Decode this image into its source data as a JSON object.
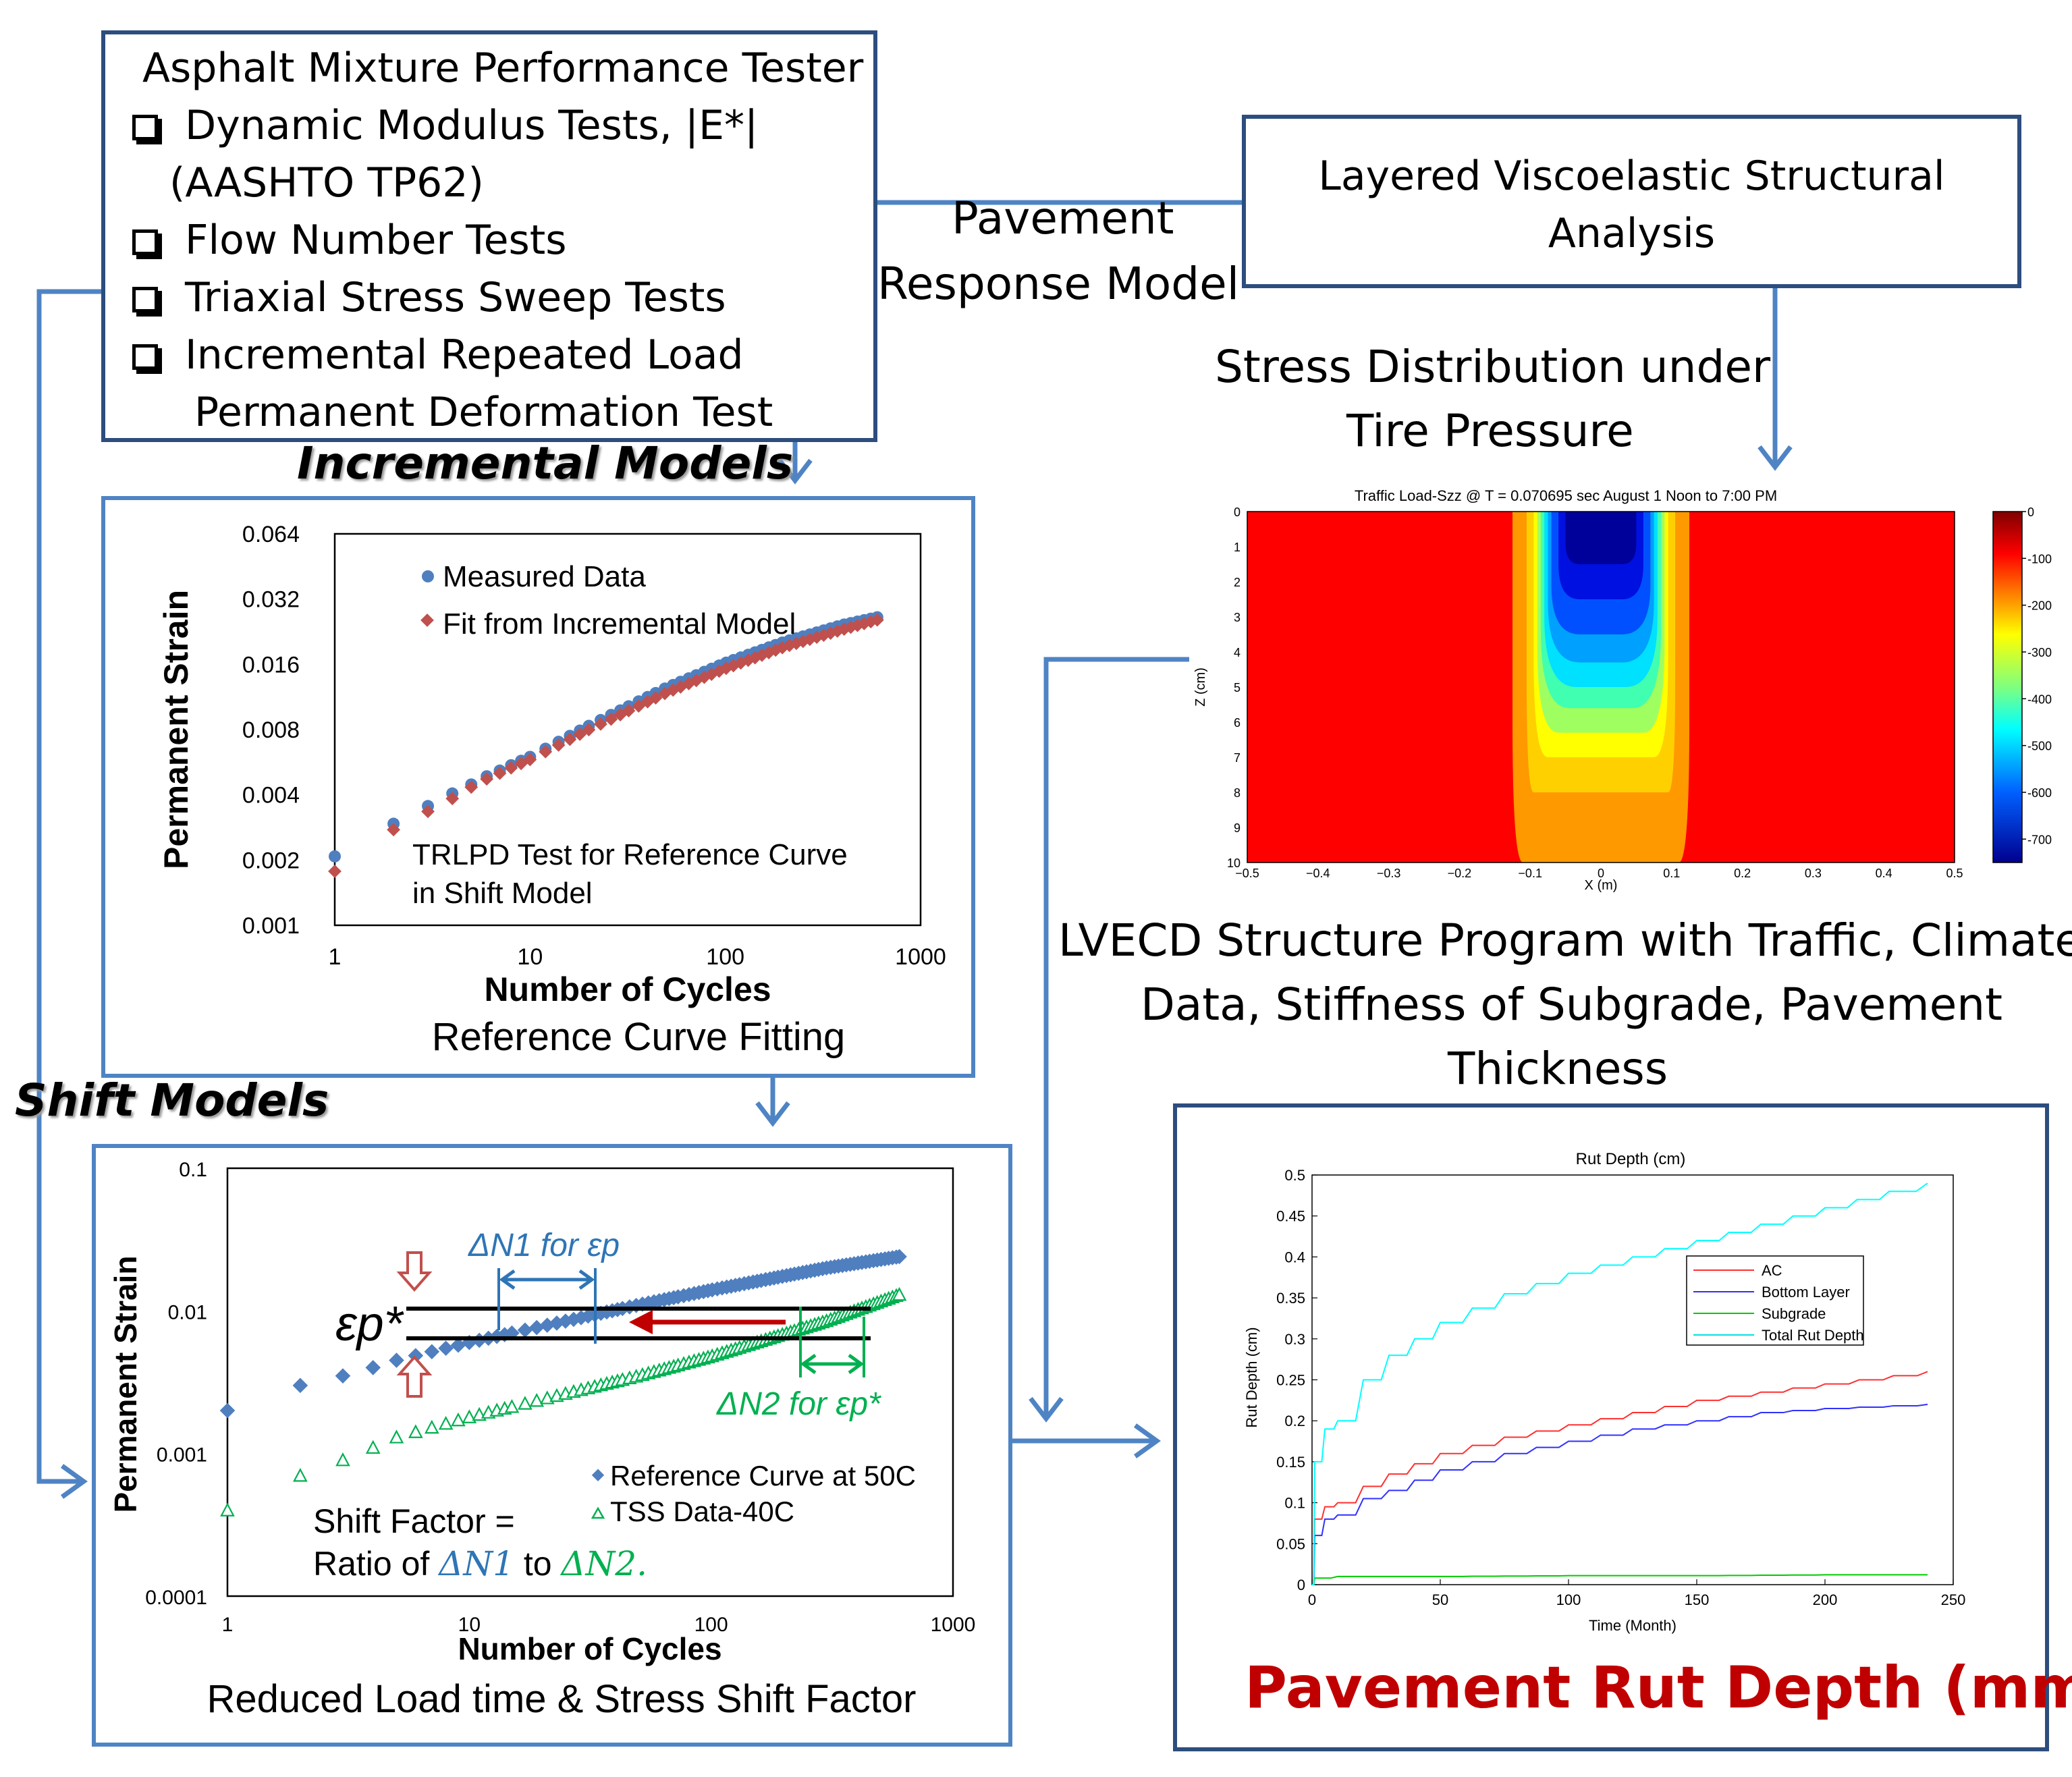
{
  "amp_box": {
    "title": "Asphalt Mixture Performance Tester",
    "items": [
      {
        "line1": "Dynamic Modulus Tests, |E*|",
        "line2": "(AASHTO TP62)"
      },
      {
        "line1": "Flow Number Tests",
        "line2": ""
      },
      {
        "line1": "Triaxial Stress Sweep Tests",
        "line2": ""
      },
      {
        "line1": "Incremental Repeated Load",
        "line2": "Permanent Deformation Test"
      }
    ]
  },
  "response_model": {
    "line1": "Pavement",
    "line2": "Response Model"
  },
  "lve_box": {
    "line1": "Layered Viscoelastic Structural",
    "line2": "Analysis"
  },
  "stress_caption": {
    "line1": "Stress Distribution under",
    "line2": "Tire Pressure"
  },
  "incremental_label": "Incremental Models",
  "shift_label": "Shift Models",
  "lvecd_caption": {
    "line1": "LVECD Structure Program with Traffic, Climate",
    "line2": "Data, Stiffness of Subgrade, Pavement",
    "line3": "Thickness"
  },
  "rut_caption": "Pavement Rut Depth (mm)",
  "colors": {
    "frame": "#2d4d7e",
    "arrow": "#4f84c4",
    "rut_caption": "#c00000"
  },
  "chart_data": [
    {
      "type": "scatter",
      "caption": "Reference Curve Fitting",
      "xlabel": "Number of Cycles",
      "ylabel": "Permanent Strain",
      "xscale": "log",
      "yscale": "log",
      "xlim": [
        1,
        1000
      ],
      "ylim": [
        0.001,
        0.064
      ],
      "xticks": [
        "1",
        "10",
        "100",
        "1000"
      ],
      "yticks": [
        "0.064",
        "0.032",
        "0.016",
        "0.008",
        "0.004",
        "0.002",
        "0.001"
      ],
      "legend": [
        "Measured Data",
        "Fit from Incremental Model"
      ],
      "annotation": {
        "line1": "TRLPD Test for Reference Curve",
        "line2": "in Shift Model"
      },
      "series": [
        {
          "name": "Measured Data",
          "x": [
            1,
            2,
            3,
            4,
            5,
            6,
            7,
            8,
            10,
            20,
            50,
            100,
            200,
            400,
            600
          ],
          "y": [
            0.00205,
            0.0029,
            0.0035,
            0.004,
            0.0044,
            0.0048,
            0.0051,
            0.0054,
            0.0059,
            0.0082,
            0.0123,
            0.016,
            0.02,
            0.024,
            0.026
          ]
        },
        {
          "name": "Fit from Incremental Model",
          "x": [
            1,
            2,
            3,
            4,
            5,
            6,
            7,
            8,
            10,
            20,
            50,
            100,
            200,
            400,
            600
          ],
          "y": [
            0.0018,
            0.0028,
            0.0034,
            0.0039,
            0.0044,
            0.0048,
            0.0051,
            0.0054,
            0.0059,
            0.0081,
            0.012,
            0.0155,
            0.0195,
            0.0235,
            0.026
          ]
        }
      ]
    },
    {
      "type": "scatter",
      "caption": "Reduced Load time & Stress Shift Factor",
      "xlabel": "Number of Cycles",
      "ylabel": "Permanent Strain",
      "xscale": "log",
      "yscale": "log",
      "xlim": [
        1,
        1000
      ],
      "ylim": [
        0.0001,
        0.1
      ],
      "xticks": [
        "1",
        "10",
        "100",
        "1000"
      ],
      "yticks": [
        "0.1",
        "0.01",
        "0.001",
        "0.0001"
      ],
      "legend": [
        "Reference Curve at 50C",
        "TSS Data-40C"
      ],
      "annotations": {
        "dn1": "ΔN1 for εp",
        "dn2": "ΔN2 for εp*",
        "ep": "εp*",
        "shift_line1": "Shift Factor =",
        "shift_line2_a": "Ratio of",
        "shift_line2_b": "ΔN1",
        "shift_line2_c": "to",
        "shift_line2_d": "ΔN2."
      },
      "series": [
        {
          "name": "Reference Curve at 50C",
          "x": [
            1,
            2,
            3,
            4,
            5,
            10,
            50,
            100,
            300,
            600
          ],
          "y": [
            0.002,
            0.003,
            0.0035,
            0.004,
            0.0045,
            0.006,
            0.011,
            0.014,
            0.02,
            0.024
          ]
        },
        {
          "name": "TSS Data-40C",
          "x": [
            1,
            2,
            3,
            4,
            5,
            10,
            50,
            100,
            300,
            600
          ],
          "y": [
            0.0004,
            0.0007,
            0.0009,
            0.0011,
            0.0013,
            0.0018,
            0.0035,
            0.0048,
            0.0085,
            0.013
          ]
        }
      ]
    },
    {
      "type": "heatmap",
      "title": "Traffic Load-Szz @ T = 0.070695 sec August 1 Noon to 7:00 PM",
      "xlabel": "X (m)",
      "ylabel": "Z (cm)",
      "xlim": [
        -0.5,
        0.5
      ],
      "ylim": [
        0,
        10
      ],
      "xticks": [
        "−0.5",
        "−0.4",
        "−0.3",
        "−0.2",
        "−0.1",
        "0",
        "0.1",
        "0.2",
        "0.3",
        "0.4",
        "0.5"
      ],
      "yticks": [
        "0",
        "1",
        "2",
        "3",
        "4",
        "5",
        "6",
        "7",
        "8",
        "9",
        "10"
      ],
      "colorbar_ticks": [
        "0",
        "-100",
        "-200",
        "-300",
        "-400",
        "-500",
        "-600",
        "-700"
      ],
      "colorbar_range": [
        -750,
        0
      ]
    },
    {
      "type": "line",
      "title": "Rut Depth (cm)",
      "xlabel": "Time (Month)",
      "ylabel": "Rut Depth (cm)",
      "xlim": [
        0,
        250
      ],
      "ylim": [
        0,
        0.5
      ],
      "xticks": [
        "0",
        "50",
        "100",
        "150",
        "200",
        "250"
      ],
      "yticks": [
        "0.5",
        "0.45",
        "0.4",
        "0.35",
        "0.3",
        "0.25",
        "0.2",
        "0.15",
        "0.1",
        "0.05",
        "0"
      ],
      "legend": [
        "AC",
        "Bottom Layer",
        "Subgrade",
        "Total Rut Depth"
      ],
      "series": [
        {
          "name": "AC",
          "color": "#ff3030",
          "x": [
            0,
            1,
            5,
            10,
            20,
            30,
            50,
            75,
            100,
            125,
            150,
            175,
            200,
            240
          ],
          "y": [
            0,
            0.08,
            0.095,
            0.1,
            0.12,
            0.135,
            0.16,
            0.18,
            0.195,
            0.21,
            0.225,
            0.235,
            0.245,
            0.26
          ]
        },
        {
          "name": "Bottom Layer",
          "color": "#3030ff",
          "x": [
            0,
            1,
            5,
            10,
            20,
            30,
            50,
            75,
            100,
            125,
            150,
            175,
            200,
            240
          ],
          "y": [
            0,
            0.06,
            0.08,
            0.085,
            0.105,
            0.115,
            0.14,
            0.16,
            0.175,
            0.19,
            0.2,
            0.21,
            0.215,
            0.22
          ]
        },
        {
          "name": "Subgrade",
          "color": "#00cc00",
          "x": [
            0,
            1,
            10,
            50,
            100,
            150,
            200,
            240
          ],
          "y": [
            0,
            0.008,
            0.01,
            0.01,
            0.011,
            0.011,
            0.012,
            0.012
          ]
        },
        {
          "name": "Total Rut Depth",
          "color": "#00ffff",
          "x": [
            0,
            1,
            5,
            10,
            20,
            30,
            40,
            50,
            75,
            100,
            125,
            150,
            175,
            200,
            225,
            240
          ],
          "y": [
            0,
            0.15,
            0.19,
            0.2,
            0.25,
            0.28,
            0.3,
            0.32,
            0.355,
            0.38,
            0.4,
            0.42,
            0.44,
            0.46,
            0.48,
            0.49
          ]
        }
      ]
    }
  ]
}
